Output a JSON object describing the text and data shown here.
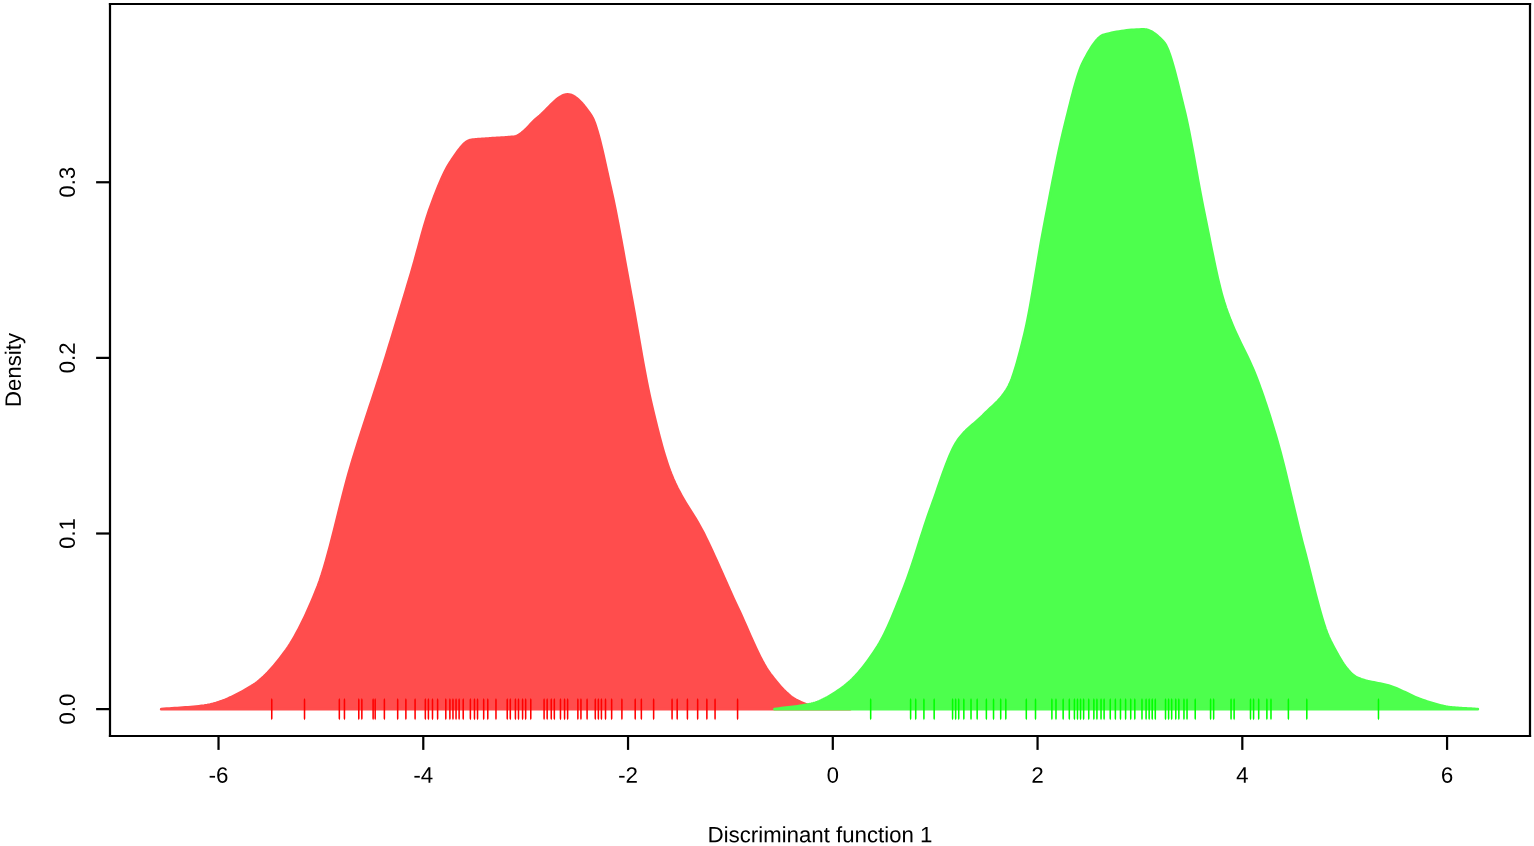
{
  "chart_data": {
    "type": "area",
    "xlabel": "Discriminant function 1",
    "ylabel": "Density",
    "xlim": [
      -7.06,
      6.81
    ],
    "ylim": [
      -0.0153,
      0.4015
    ],
    "xticks": [
      -6,
      -4,
      -2,
      0,
      2,
      4,
      6
    ],
    "yticks": [
      {
        "value": 0,
        "label": "0.0"
      },
      {
        "value": 0.1,
        "label": "0.1"
      },
      {
        "value": 0.2,
        "label": "0.2"
      },
      {
        "value": 0.3,
        "label": "0.3"
      }
    ],
    "series": [
      {
        "color": "#ff4d4d",
        "x": [
          -6.56,
          -6.14,
          -5.68,
          -5.36,
          -5.03,
          -4.71,
          -4.38,
          -4.12,
          -3.93,
          -3.73,
          -3.54,
          -3.34,
          -3.11,
          -2.88,
          -2.59,
          -2.36,
          -2.17,
          -1.97,
          -1.78,
          -1.58,
          -1.26,
          -0.93,
          -0.61,
          -0.35,
          -0.15,
          0.17
        ],
        "values": [
          0,
          0.002,
          0.013,
          0.032,
          0.07,
          0.138,
          0.198,
          0.248,
          0.286,
          0.312,
          0.324,
          0.325,
          0.326,
          0.337,
          0.35,
          0.338,
          0.297,
          0.236,
          0.176,
          0.134,
          0.1,
          0.058,
          0.02,
          0.005,
          0.001,
          0
        ]
      },
      {
        "color": "#4dff4d",
        "x": [
          -0.57,
          -0.21,
          0.11,
          0.44,
          0.7,
          0.96,
          1.22,
          1.48,
          1.71,
          1.87,
          2.06,
          2.26,
          2.45,
          2.65,
          3.04,
          3.23,
          3.43,
          3.63,
          3.82,
          4.15,
          4.34,
          4.6,
          4.86,
          5.12,
          5.45,
          5.77,
          6.04,
          6.3
        ],
        "values": [
          0,
          0.003,
          0.013,
          0.036,
          0.07,
          0.115,
          0.153,
          0.168,
          0.183,
          0.213,
          0.274,
          0.331,
          0.369,
          0.384,
          0.387,
          0.38,
          0.342,
          0.282,
          0.232,
          0.187,
          0.153,
          0.092,
          0.039,
          0.018,
          0.013,
          0.005,
          0.001,
          0
        ]
      },
      {
        "type": "scatter",
        "color": "#ff0000",
        "x": [
          -5.48,
          -5.16,
          -4.82,
          -4.77,
          -4.63,
          -4.6,
          -4.49,
          -4.47,
          -4.38,
          -4.25,
          -4.17,
          -4.08,
          -3.98,
          -3.95,
          -3.91,
          -3.86,
          -3.78,
          -3.74,
          -3.71,
          -3.68,
          -3.65,
          -3.61,
          -3.54,
          -3.5,
          -3.47,
          -3.41,
          -3.37,
          -3.29,
          -3.18,
          -3.15,
          -3.1,
          -3.07,
          -3.03,
          -3.0,
          -2.95,
          -2.82,
          -2.79,
          -2.75,
          -2.72,
          -2.66,
          -2.62,
          -2.59,
          -2.49,
          -2.46,
          -2.4,
          -2.32,
          -2.29,
          -2.26,
          -2.22,
          -2.16,
          -2.06,
          -1.93,
          -1.87,
          -1.75,
          -1.57,
          -1.52,
          -1.42,
          -1.32,
          -1.23,
          -1.15,
          -0.93
        ],
        "values": [
          0,
          0,
          0,
          0,
          0,
          0,
          0,
          0,
          0,
          0,
          0,
          0,
          0,
          0,
          0,
          0,
          0,
          0,
          0,
          0,
          0,
          0,
          0,
          0,
          0,
          0,
          0,
          0,
          0,
          0,
          0,
          0,
          0,
          0,
          0,
          0,
          0,
          0,
          0,
          0,
          0,
          0,
          0,
          0,
          0,
          0,
          0,
          0,
          0,
          0,
          0,
          0,
          0,
          0,
          0,
          0,
          0,
          0,
          0,
          0,
          0
        ]
      },
      {
        "type": "scatter",
        "color": "#00ff00",
        "x": [
          0.37,
          0.76,
          0.81,
          0.89,
          0.99,
          1.17,
          1.2,
          1.23,
          1.28,
          1.35,
          1.41,
          1.5,
          1.57,
          1.64,
          1.69,
          1.89,
          1.98,
          2.14,
          2.18,
          2.25,
          2.31,
          2.36,
          2.39,
          2.42,
          2.45,
          2.5,
          2.55,
          2.58,
          2.62,
          2.65,
          2.71,
          2.76,
          2.81,
          2.86,
          2.91,
          2.95,
          3.02,
          3.06,
          3.09,
          3.12,
          3.15,
          3.25,
          3.28,
          3.31,
          3.35,
          3.38,
          3.43,
          3.46,
          3.54,
          3.69,
          3.72,
          3.89,
          3.92,
          4.08,
          4.11,
          4.16,
          4.24,
          4.28,
          4.45,
          4.63,
          5.33
        ],
        "values": [
          0,
          0,
          0,
          0,
          0,
          0,
          0,
          0,
          0,
          0,
          0,
          0,
          0,
          0,
          0,
          0,
          0,
          0,
          0,
          0,
          0,
          0,
          0,
          0,
          0,
          0,
          0,
          0,
          0,
          0,
          0,
          0,
          0,
          0,
          0,
          0,
          0,
          0,
          0,
          0,
          0,
          0,
          0,
          0,
          0,
          0,
          0,
          0,
          0,
          0,
          0,
          0,
          0,
          0,
          0,
          0,
          0,
          0,
          0,
          0,
          0
        ]
      }
    ]
  }
}
